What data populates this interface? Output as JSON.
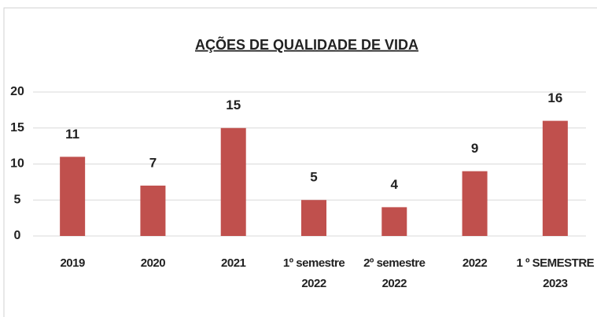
{
  "chart_data": {
    "type": "bar",
    "title": "AÇÕES DE QUALIDADE DE VIDA",
    "categories": [
      "2019",
      "2020",
      "2021",
      "1º semestre\n2022",
      "2º semestre\n2022",
      "2022",
      "1 º SEMESTRE\n2023"
    ],
    "values": [
      11,
      7,
      15,
      5,
      4,
      9,
      16
    ],
    "color": "#c0504d",
    "ylim": [
      0,
      20
    ],
    "yticks": [
      0,
      5,
      10,
      15,
      20
    ],
    "grid": true
  }
}
